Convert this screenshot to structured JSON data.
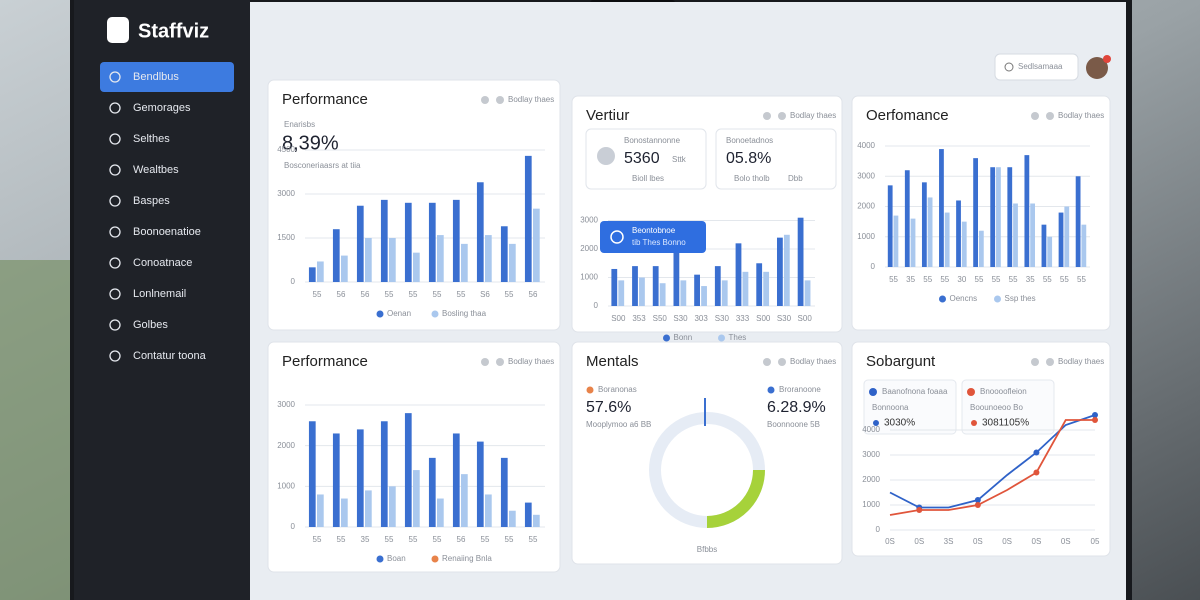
{
  "sidebar": {
    "brand": "Staffviz",
    "nav": [
      "Bendlbus",
      "Gemorages",
      "Selthes",
      "Wealtbes",
      "Baspes",
      "Boonoenatioe",
      "Conoatnace",
      "Lonlnemail",
      "Golbes",
      "Contatur toona"
    ]
  },
  "topbar": {
    "search": "Sedlsamaaa"
  },
  "panels": [
    {
      "title": "Performance",
      "menu": "Bodlay thaes",
      "kpi_label": "Enarisbs",
      "kpi": "8,39%",
      "kpi_note": "Bosconeriaasrs at tiia",
      "chart": {
        "type": "bar",
        "categories": [
          "55",
          "56",
          "56",
          "55",
          "55",
          "55",
          "55",
          "S6",
          "55",
          "56"
        ],
        "series": [
          {
            "name": "Oenan",
            "color": "#3a6fd0",
            "values": [
              500,
              1800,
              2600,
              2800,
              2700,
              2700,
              2800,
              3400,
              1900,
              4300
            ]
          },
          {
            "name": "Bosling thaa",
            "color": "#aac8ee",
            "values": [
              700,
              900,
              1500,
              1500,
              1000,
              1600,
              1300,
              1600,
              1300,
              2500
            ]
          }
        ],
        "ylim": [
          0,
          4500
        ],
        "yticks": [
          0,
          1500,
          3000,
          4500
        ]
      }
    },
    {
      "title": "Vertiur",
      "menu": "Bodlay thaes",
      "cards": [
        {
          "label": "Bonostannonne",
          "value": "5360",
          "suffix": "Sttk",
          "note": "Bioll lbes"
        },
        {
          "label": "Bonoetadnos",
          "value": "05.8%",
          "note": "Bolo tholb",
          "note2": "Dbb"
        }
      ],
      "tooltip": {
        "title": "Beontobnoe",
        "text": "tib Thes Bonno"
      },
      "chart": {
        "type": "bar",
        "categories": [
          "S00",
          "353",
          "S50",
          "S30",
          "303",
          "S30",
          "333",
          "S00",
          "S30",
          "S00"
        ],
        "series": [
          {
            "name": "Bonn",
            "color": "#3a6fd0",
            "values": [
              1300,
              1400,
              1400,
              1900,
              1100,
              1400,
              2200,
              1500,
              2400,
              3100
            ]
          },
          {
            "name": "Thes",
            "color": "#aac8ee",
            "values": [
              900,
              1000,
              800,
              900,
              700,
              900,
              1200,
              1200,
              2500,
              900
            ]
          }
        ],
        "ylim": [
          0,
          3300
        ],
        "yticks": [
          0,
          1000,
          2000,
          3000
        ]
      }
    },
    {
      "title": "Oerfomance",
      "menu": "Bodlay thaes",
      "chart": {
        "type": "bar",
        "categories": [
          "55",
          "35",
          "55",
          "55",
          "30",
          "55",
          "55",
          "55",
          "35",
          "55",
          "55",
          "55"
        ],
        "series": [
          {
            "name": "Oencns",
            "color": "#3a6fd0",
            "values": [
              2700,
              3200,
              2800,
              3900,
              2200,
              3600,
              3300,
              3300,
              3700,
              1400,
              1800,
              3000
            ]
          },
          {
            "name": "Ssp thes",
            "color": "#aac8ee",
            "values": [
              1700,
              1600,
              2300,
              1800,
              1500,
              1200,
              3300,
              2100,
              2100,
              1000,
              2000,
              1400
            ]
          }
        ],
        "ylim": [
          0,
          4200
        ],
        "yticks": [
          0,
          1000,
          2000,
          3000,
          4000
        ]
      }
    },
    {
      "title": "Performance",
      "menu": "Bodlay thaes",
      "chart": {
        "type": "bar",
        "categories": [
          "55",
          "55",
          "35",
          "55",
          "55",
          "55",
          "56",
          "55",
          "55",
          "55"
        ],
        "series": [
          {
            "name": "Boan",
            "color": "#3a6fd0",
            "values": [
              2600,
              2300,
              2400,
              2600,
              2800,
              1700,
              2300,
              2100,
              1700,
              600
            ]
          },
          {
            "name": "Renaiing Bnla",
            "color": "#aac8ee",
            "legend_color": "#e8834a",
            "values": [
              800,
              700,
              900,
              1000,
              1400,
              700,
              1300,
              800,
              400,
              300
            ]
          }
        ],
        "ylim": [
          0,
          3000
        ],
        "yticks": [
          0,
          1000,
          2000,
          3000
        ]
      }
    },
    {
      "title": "Mentals",
      "menu": "Bodlay thaes",
      "stats": [
        {
          "label": "Boranonas",
          "value": "57.6%",
          "note": "Mooplymoo a6 BB",
          "color": "#e8834a"
        },
        {
          "label": "Broranoone",
          "value": "6.28.9%",
          "note": "Boonnoone 5B",
          "color": "#3a6fd0"
        }
      ],
      "chart": {
        "type": "donut",
        "value": 25,
        "color": "#a6d23a",
        "label": "Bfbbs"
      }
    },
    {
      "title": "Sobargunt",
      "menu": "Bodlay thaes",
      "cards": [
        {
          "label": "Bonnoona",
          "value": "3030%"
        },
        {
          "label": "Boounoeoo Bo",
          "value": "3081105%"
        }
      ],
      "chart": {
        "type": "line",
        "categories": [
          "0S",
          "0S",
          "3S",
          "0S",
          "0S",
          "0S",
          "0S",
          "05"
        ],
        "series": [
          {
            "name": "Baanofnona foaaa",
            "color": "#2f62c8",
            "values": [
              1500,
              900,
              900,
              1200,
              2200,
              3100,
              4200,
              4600
            ]
          },
          {
            "name": "Bnoooofleion",
            "color": "#e0553b",
            "values": [
              600,
              800,
              800,
              1000,
              1600,
              2300,
              4400,
              4400
            ]
          }
        ],
        "ylim": [
          0,
          5000
        ],
        "yticks": [
          0,
          1000,
          2000,
          3000,
          4000
        ]
      }
    }
  ]
}
